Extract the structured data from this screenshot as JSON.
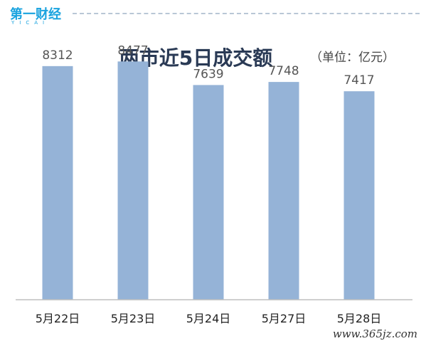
{
  "logo": {
    "main": "第一财经",
    "sub": "YICAI"
  },
  "header": {
    "unit": "（单位：亿元）"
  },
  "watermark": "www.365jz.com",
  "colors": {
    "bar": "#95b3d7",
    "axis": "#bfbfbf",
    "title": "#2a3a55"
  },
  "chart_data": {
    "type": "bar",
    "title": "两市近5日成交额",
    "categories": [
      "5月22日",
      "5月23日",
      "5月24日",
      "5月27日",
      "5月28日"
    ],
    "values": [
      8312,
      8477,
      7639,
      7748,
      7417
    ],
    "data_labels": [
      "8312",
      "8477",
      "7639",
      "7748",
      "7417"
    ],
    "ylim": [
      0,
      9600
    ],
    "grid": false,
    "legend": "none"
  }
}
